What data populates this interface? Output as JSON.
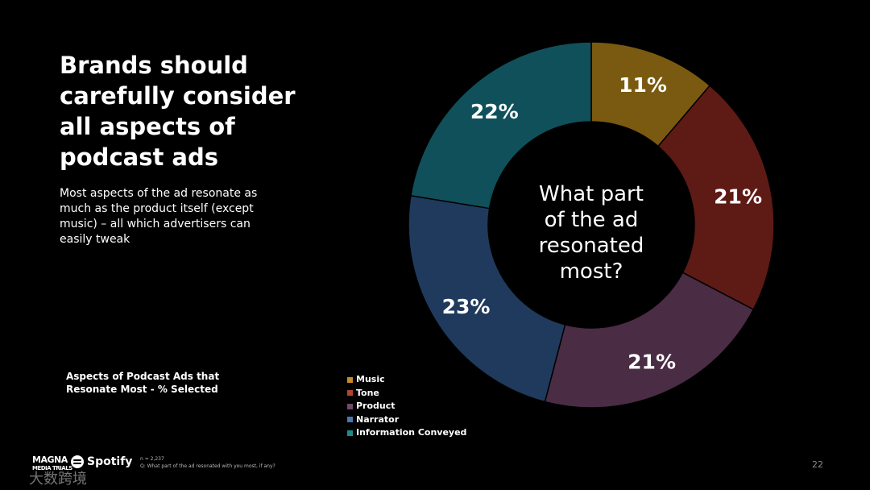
{
  "slide": {
    "headline": "Brands should carefully consider all aspects of podcast ads",
    "subtext": "Most aspects of the ad resonate as much as the product itself (except music) – all which advertisers can easily tweak",
    "page_number": "22",
    "footnote_n": "n = 2,237",
    "footnote_q": "Q: What part of the ad resonated with you most, if any?",
    "logo_magna": "MAGNA",
    "logo_magna_sub": "MEDIA TRIALS",
    "logo_spotify": "Spotify",
    "watermark": "大数跨境"
  },
  "chart_data": {
    "type": "pie",
    "title": "Aspects of Podcast Ads that Resonate Most - % Selected",
    "center_text": [
      "What part",
      "of the ad",
      "resonated",
      "most?"
    ],
    "categories": [
      "Music",
      "Tone",
      "Product",
      "Narrator",
      "Information Conveyed"
    ],
    "values": [
      11,
      21,
      21,
      23,
      22
    ],
    "labels": [
      "11%",
      "21%",
      "21%",
      "23%",
      "22%"
    ],
    "colors": [
      "#7a5a10",
      "#5e1a15",
      "#4a2c44",
      "#1f3a5c",
      "#10505a"
    ],
    "swatch_colors": [
      "#c9892a",
      "#b0442e",
      "#6e4a6a",
      "#4a77b0",
      "#1e8a90"
    ],
    "legend_position": "bottom-left"
  }
}
